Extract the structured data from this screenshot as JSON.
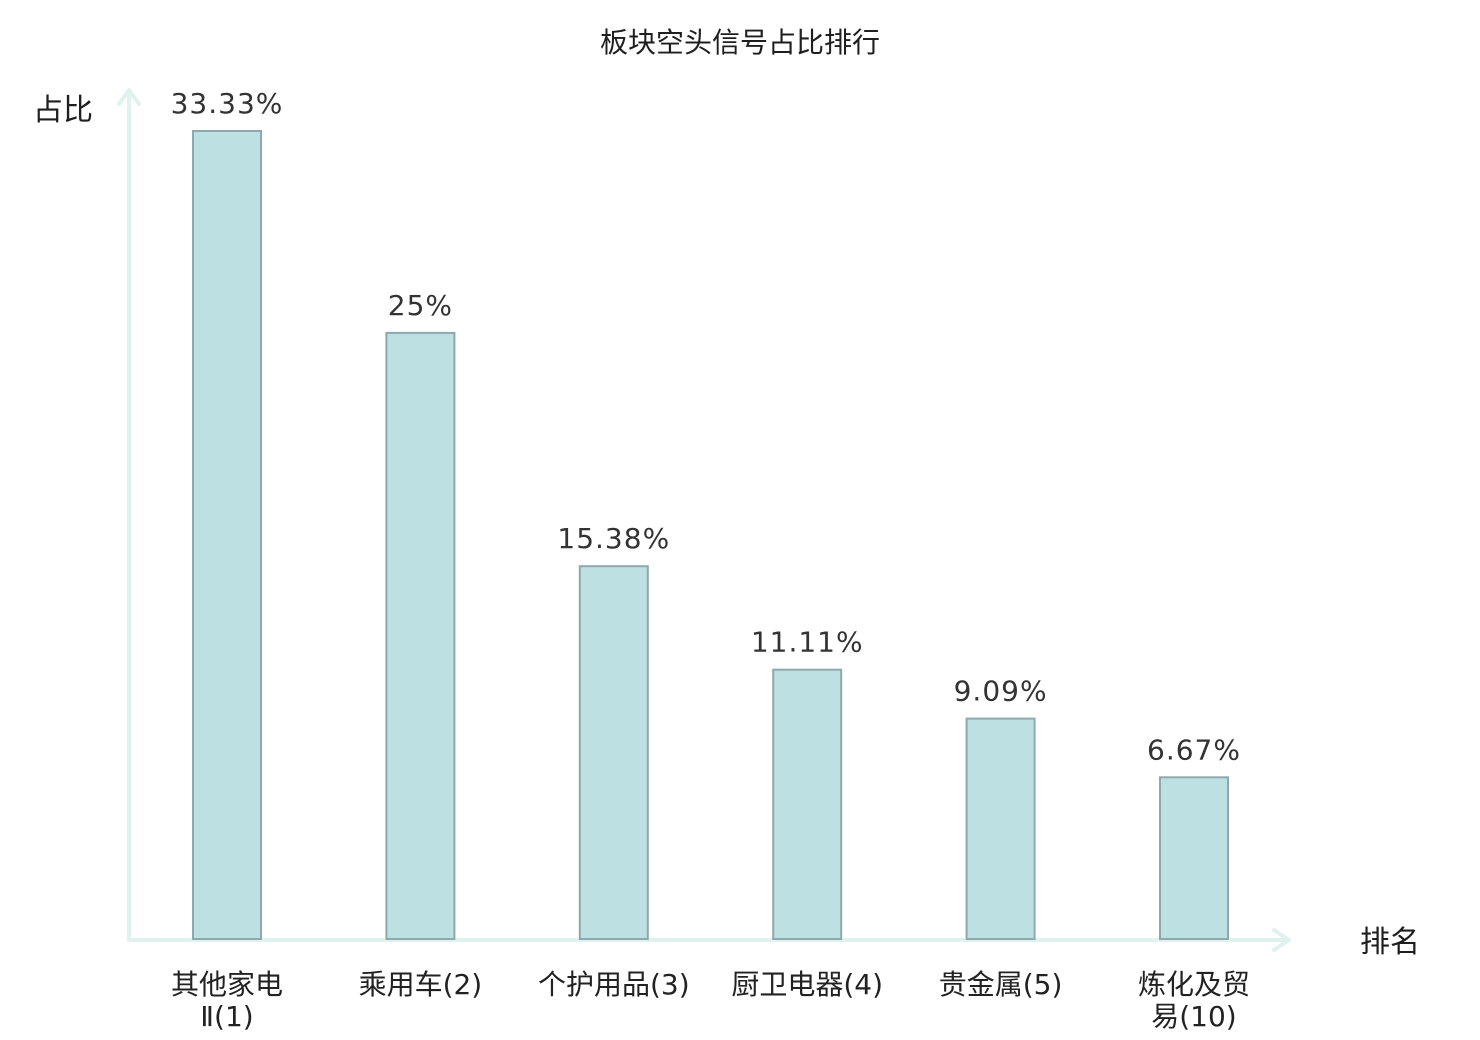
{
  "chart_data": {
    "type": "bar",
    "title": "板块空头信号占比排行",
    "ylabel": "占比",
    "xlabel": "排名",
    "ylim": [
      0,
      33.33
    ],
    "grid": false,
    "legend": "none",
    "categories": [
      {
        "lines": [
          "其他家电",
          "Ⅱ(1)"
        ],
        "highlight": false
      },
      {
        "lines": [
          "乘用车(2)"
        ],
        "highlight": false
      },
      {
        "lines": [
          "个护用品(3)"
        ],
        "highlight": false
      },
      {
        "lines": [
          "厨卫电器(4)"
        ],
        "highlight": false
      },
      {
        "lines": [
          "贵金属(5)"
        ],
        "highlight": false
      },
      {
        "lines": [
          "炼化及贸",
          "易(10)"
        ],
        "highlight": true
      }
    ],
    "values": [
      33.33,
      25,
      15.38,
      11.11,
      9.09,
      6.67
    ],
    "value_labels": [
      "33.33%",
      "25%",
      "15.38%",
      "11.11%",
      "9.09%",
      "6.67%"
    ],
    "colors": {
      "bar_fill": "#bde0e3",
      "bar_stroke": "#8ea9ac",
      "axis": "#dff2ef",
      "highlight_text": "#e0121b",
      "label_text": "#222222"
    }
  }
}
